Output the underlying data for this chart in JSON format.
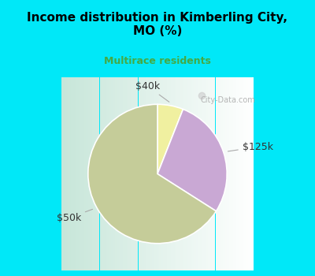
{
  "title": "Income distribution in Kimberling City,\nMO (%)",
  "subtitle": "Multirace residents",
  "slices": [
    {
      "label": "$40k",
      "value": 6,
      "color": "#f0f0a0"
    },
    {
      "label": "$125k",
      "value": 28,
      "color": "#c9a8d4"
    },
    {
      "label": "$50k",
      "value": 66,
      "color": "#c5cc99"
    }
  ],
  "background_cyan": "#00e8f8",
  "background_chart_left": "#c8e8d0",
  "background_chart_right": "#f0f8f4",
  "title_fontsize": 11,
  "subtitle_fontsize": 9,
  "subtitle_color": "#44aa44",
  "watermark": "City-Data.com",
  "start_angle": 90
}
